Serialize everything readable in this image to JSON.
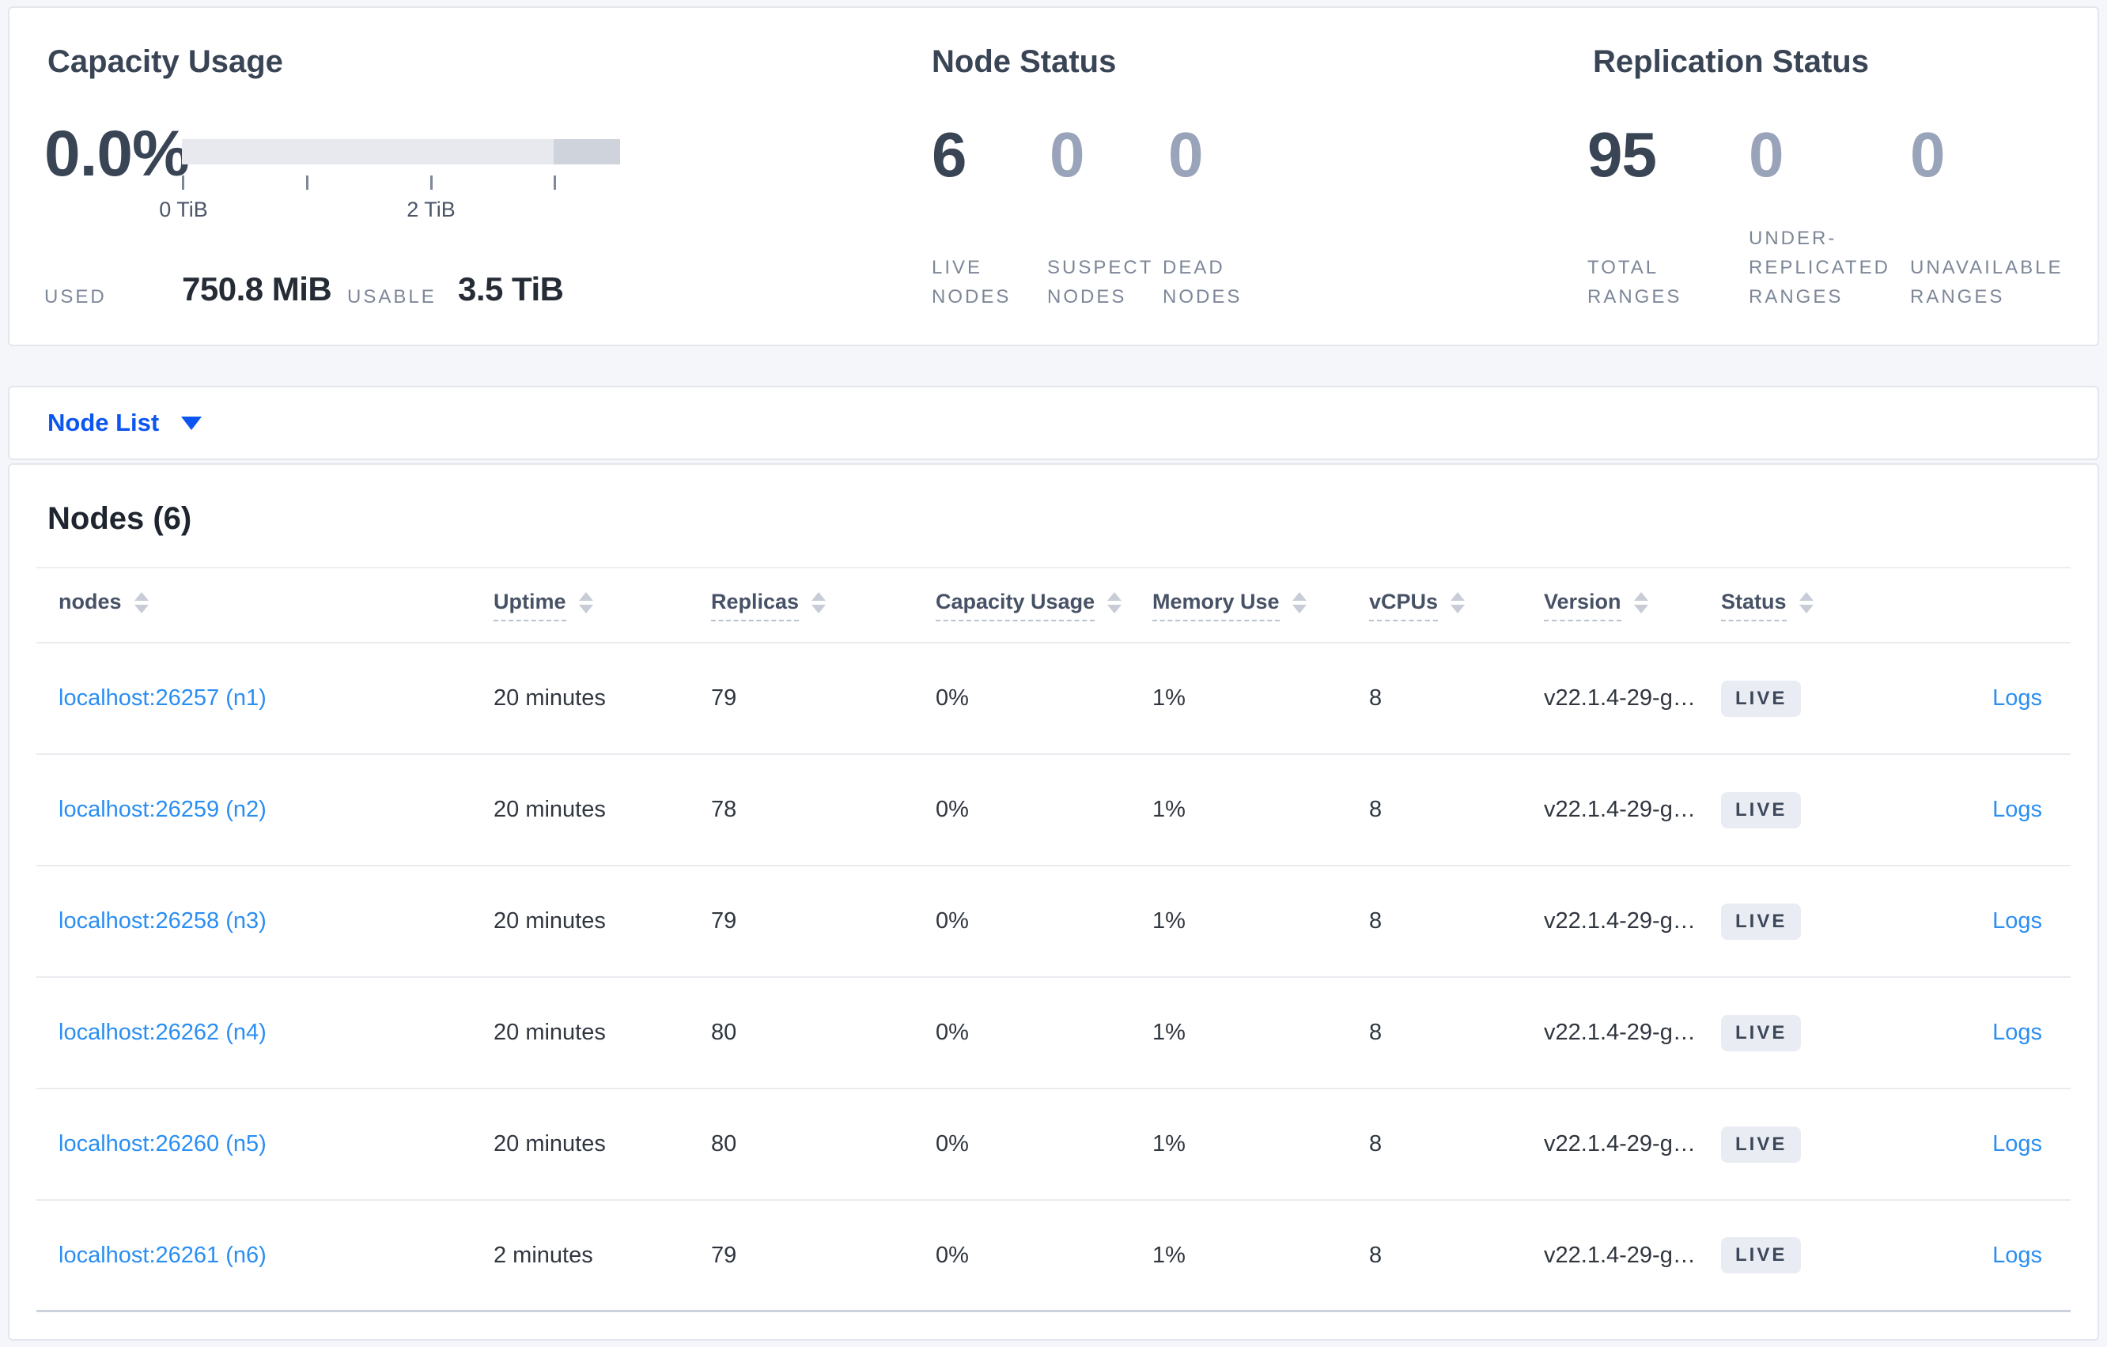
{
  "overview": {
    "capacity": {
      "title": "Capacity Usage",
      "percent": "0.0%",
      "tick_labels": [
        "0 TiB",
        "2 TiB"
      ],
      "scale_max": "3.5 TiB",
      "used_label": "USED",
      "used_value": "750.8 MiB",
      "usable_label": "USABLE",
      "usable_value": "3.5 TiB"
    },
    "node_status": {
      "title": "Node Status",
      "metrics": [
        {
          "value": "6",
          "label": "LIVE\nNODES",
          "emphasis": "dark"
        },
        {
          "value": "0",
          "label": "SUSPECT\nNODES",
          "emphasis": "light"
        },
        {
          "value": "0",
          "label": "DEAD\nNODES",
          "emphasis": "light"
        }
      ]
    },
    "replication_status": {
      "title": "Replication Status",
      "metrics": [
        {
          "value": "95",
          "label": "TOTAL\nRANGES",
          "emphasis": "dark"
        },
        {
          "value": "0",
          "label": "UNDER-\nREPLICATED\nRANGES",
          "emphasis": "light"
        },
        {
          "value": "0",
          "label": "UNAVAILABLE\nRANGES",
          "emphasis": "light"
        }
      ]
    }
  },
  "view_selector": {
    "label": "Node List"
  },
  "table": {
    "title": "Nodes (6)",
    "columns": [
      {
        "label": "nodes",
        "underlined": false
      },
      {
        "label": "Uptime",
        "underlined": true
      },
      {
        "label": "Replicas",
        "underlined": true
      },
      {
        "label": "Capacity Usage",
        "underlined": true
      },
      {
        "label": "Memory Use",
        "underlined": true
      },
      {
        "label": "vCPUs",
        "underlined": true
      },
      {
        "label": "Version",
        "underlined": true
      },
      {
        "label": "Status",
        "underlined": true
      }
    ],
    "rows": [
      {
        "node": "localhost:26257 (n1)",
        "uptime": "20 minutes",
        "replicas": "79",
        "capacity": "0%",
        "memory": "1%",
        "vcpus": "8",
        "version": "v22.1.4-29-g…",
        "status": "LIVE",
        "logs": "Logs"
      },
      {
        "node": "localhost:26259 (n2)",
        "uptime": "20 minutes",
        "replicas": "78",
        "capacity": "0%",
        "memory": "1%",
        "vcpus": "8",
        "version": "v22.1.4-29-g…",
        "status": "LIVE",
        "logs": "Logs"
      },
      {
        "node": "localhost:26258 (n3)",
        "uptime": "20 minutes",
        "replicas": "79",
        "capacity": "0%",
        "memory": "1%",
        "vcpus": "8",
        "version": "v22.1.4-29-g…",
        "status": "LIVE",
        "logs": "Logs"
      },
      {
        "node": "localhost:26262 (n4)",
        "uptime": "20 minutes",
        "replicas": "80",
        "capacity": "0%",
        "memory": "1%",
        "vcpus": "8",
        "version": "v22.1.4-29-g…",
        "status": "LIVE",
        "logs": "Logs"
      },
      {
        "node": "localhost:26260 (n5)",
        "uptime": "20 minutes",
        "replicas": "80",
        "capacity": "0%",
        "memory": "1%",
        "vcpus": "8",
        "version": "v22.1.4-29-g…",
        "status": "LIVE",
        "logs": "Logs"
      },
      {
        "node": "localhost:26261 (n6)",
        "uptime": "2 minutes",
        "replicas": "79",
        "capacity": "0%",
        "memory": "1%",
        "vcpus": "8",
        "version": "v22.1.4-29-g…",
        "status": "LIVE",
        "logs": "Logs"
      }
    ]
  },
  "colors": {
    "page_background": "#f4f6fa",
    "card_background": "#ffffff",
    "card_border": "#e3e6ec",
    "heading_navy": "#394455",
    "muted_slate": "#7d8798",
    "light_metric": "#99a3b9",
    "link_blue": "#2a8ef2",
    "selector_blue": "#0b55f0",
    "badge_background": "#e9edf3",
    "badge_text": "#3c4759",
    "bar_fill": "#e7e9ee",
    "bar_tail": "#ced3dc"
  }
}
